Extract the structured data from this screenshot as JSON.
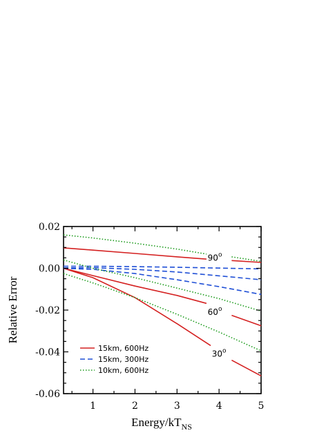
{
  "chart_data": {
    "type": "line",
    "xlabel": "Energy/kT",
    "xlabel_sub": "NS",
    "ylabel": "Relative Error",
    "xlim": [
      0.3,
      5.0
    ],
    "ylim": [
      -0.06,
      0.02
    ],
    "xticks": [
      1,
      2,
      3,
      4,
      5
    ],
    "xtick_labels": [
      "1",
      "2",
      "3",
      "4",
      "5"
    ],
    "yticks": [
      0.02,
      0.0,
      -0.02,
      -0.04,
      -0.06
    ],
    "ytick_labels": [
      "0.02",
      "0.00",
      "-0.02",
      "-0.04",
      "-0.06"
    ],
    "grid": false,
    "legend_position": "bottom-left",
    "legend": [
      {
        "label": "15km, 600Hz",
        "color": "#d42020",
        "dash": "solid"
      },
      {
        "label": "15km, 300Hz",
        "color": "#1f4fd6",
        "dash": "dashed"
      },
      {
        "label": "10km, 600Hz",
        "color": "#1a9a1a",
        "dash": "dotted"
      }
    ],
    "annotations": [
      {
        "text": "90",
        "sup": "o",
        "x": 3.9,
        "y": 0.005
      },
      {
        "text": "60",
        "sup": "o",
        "x": 3.9,
        "y": -0.021
      },
      {
        "text": "30",
        "sup": "o",
        "x": 4.0,
        "y": -0.041
      }
    ],
    "series": [
      {
        "legend_index": 0,
        "angle": "90",
        "x": [
          0.3,
          1.0,
          2.0,
          3.0,
          3.7
        ],
        "y": [
          0.0098,
          0.0087,
          0.0071,
          0.0055,
          0.0044
        ]
      },
      {
        "legend_index": 0,
        "angle": "90",
        "x": [
          4.3,
          5.0
        ],
        "y": [
          0.0037,
          0.0028
        ]
      },
      {
        "legend_index": 0,
        "angle": "60",
        "x": [
          0.3,
          1.0,
          2.0,
          3.0,
          3.7
        ],
        "y": [
          0.0,
          -0.0035,
          -0.0085,
          -0.013,
          -0.0168
        ]
      },
      {
        "legend_index": 0,
        "angle": "60",
        "x": [
          4.3,
          5.0
        ],
        "y": [
          -0.0225,
          -0.0275
        ]
      },
      {
        "legend_index": 0,
        "angle": "30",
        "x": [
          0.3,
          1.0,
          2.0,
          3.0,
          3.8
        ],
        "y": [
          0.0,
          -0.0045,
          -0.014,
          -0.0265,
          -0.037
        ]
      },
      {
        "legend_index": 0,
        "angle": "30",
        "x": [
          4.3,
          5.0
        ],
        "y": [
          -0.044,
          -0.0515
        ]
      },
      {
        "legend_index": 1,
        "angle": "90",
        "x": [
          0.3,
          1.0,
          2.0,
          3.0,
          4.0,
          5.0
        ],
        "y": [
          0.001,
          0.001,
          0.0008,
          0.0005,
          0.0001,
          -0.0003
        ]
      },
      {
        "legend_index": 1,
        "angle": "60",
        "x": [
          0.3,
          1.0,
          2.0,
          3.0,
          4.0,
          5.0
        ],
        "y": [
          0.0002,
          0.0003,
          -0.0005,
          -0.0018,
          -0.0036,
          -0.0055
        ]
      },
      {
        "legend_index": 1,
        "angle": "30",
        "x": [
          0.3,
          1.0,
          2.0,
          3.0,
          4.0,
          5.0
        ],
        "y": [
          0.0,
          -0.0005,
          -0.0025,
          -0.0055,
          -0.0088,
          -0.0125
        ]
      },
      {
        "legend_index": 2,
        "angle": "90",
        "x": [
          0.3,
          1.0,
          2.0,
          3.0,
          3.7
        ],
        "y": [
          0.016,
          0.0145,
          0.012,
          0.0092,
          0.0068
        ]
      },
      {
        "legend_index": 2,
        "angle": "90",
        "x": [
          4.3,
          5.0
        ],
        "y": [
          0.0055,
          0.0033
        ]
      },
      {
        "legend_index": 2,
        "angle": "60",
        "x": [
          0.3,
          1.0,
          2.0,
          3.0,
          4.0,
          5.0
        ],
        "y": [
          0.004,
          0.0,
          -0.0045,
          -0.0095,
          -0.0145,
          -0.0205
        ]
      },
      {
        "legend_index": 2,
        "angle": "30",
        "x": [
          0.3,
          1.0,
          2.0,
          3.0,
          4.0,
          5.0
        ],
        "y": [
          -0.0025,
          -0.007,
          -0.014,
          -0.022,
          -0.0305,
          -0.0395
        ]
      }
    ]
  }
}
